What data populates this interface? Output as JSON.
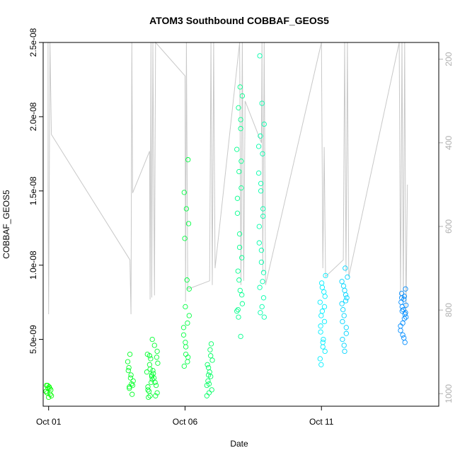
{
  "chart_data": {
    "type": "scatter",
    "title": "ATOM3 Southbound COBBAF_GEOS5",
    "xlabel": "Date",
    "ylabel": "COBBAF_GEOS5",
    "x_axis": {
      "unit": "day of Oct (2016)",
      "range": [
        0.8,
        15.3
      ],
      "ticks": [
        {
          "value": 1,
          "label": "Oct 01"
        },
        {
          "value": 6,
          "label": "Oct 06"
        },
        {
          "value": 11,
          "label": "Oct 11"
        }
      ]
    },
    "y_axis": {
      "range": [
        5e-10,
        2.5e-08
      ],
      "ticks": [
        {
          "value": 5e-09,
          "label": "5.0e-09"
        },
        {
          "value": 1e-08,
          "label": "1.0e-08"
        },
        {
          "value": 1.5e-08,
          "label": "1.5e-08"
        },
        {
          "value": 2e-08,
          "label": "2.0e-08"
        },
        {
          "value": 2.5e-08,
          "label": "2.5e-08"
        }
      ]
    },
    "y2_axis": {
      "color": "#b0b0b0",
      "reversed": true,
      "range": [
        1030,
        160
      ],
      "ticks": [
        {
          "value": 200,
          "label": "200"
        },
        {
          "value": 400,
          "label": "400"
        },
        {
          "value": 600,
          "label": "600"
        },
        {
          "value": 800,
          "label": "800"
        },
        {
          "value": 1000,
          "label": "1000"
        }
      ]
    },
    "grid": false,
    "legend": "none",
    "point_color_scale": [
      "#00ff00",
      "#00ff80",
      "#00ffff",
      "#0080ff"
    ],
    "series": [
      {
        "kind": "points",
        "clusters": [
          {
            "x": 1.0,
            "values": [
              1.5e-09,
              1.7e-09,
              1.9e-09,
              1.2e-09,
              1.8e-09,
              1.4e-09,
              1.6e-09,
              1.1e-09,
              1.9e-09,
              1.3e-09,
              1.7e-09,
              1.5e-09
            ]
          },
          {
            "x": 4.0,
            "values": [
              1.8e-09,
              2.2e-09,
              2.6e-09,
              3.1e-09,
              1.9e-09,
              2.4e-09,
              2.9e-09,
              1.3e-09,
              4e-09,
              3.5e-09,
              2e-09,
              1.7e-09
            ]
          },
          {
            "x": 4.7,
            "values": [
              1.2e-09,
              1.8e-09,
              2.5e-09,
              3.3e-09,
              4e-09,
              2.1e-09,
              1.5e-09,
              2.8e-09,
              3.7e-09,
              1.1e-09,
              2.3e-09,
              3e-09,
              1.6e-09,
              2.6e-09,
              3.9e-09
            ]
          },
          {
            "x": 4.9,
            "values": [
              1.4e-09,
              2.1e-09,
              2.9e-09,
              3.8e-09,
              4.6e-09,
              5e-09,
              1.9e-09,
              2.4e-09,
              3.4e-09,
              1.2e-09,
              2.7e-09,
              4.2e-09
            ]
          },
          {
            "x": 6.05,
            "values": [
              3.2e-09,
              3.8e-09,
              4.5e-09,
              5.3e-09,
              6.1e-09,
              7.2e-09,
              8.4e-09,
              9e-09,
              1.18e-08,
              1.28e-08,
              1.38e-08,
              1.49e-08,
              1.71e-08,
              4e-09,
              5.8e-09,
              3.5e-09,
              4.8e-09,
              6.6e-09
            ]
          },
          {
            "x": 6.9,
            "values": [
              1.4e-09,
              1.9e-09,
              2.5e-09,
              3.1e-09,
              3.6e-09,
              4.3e-09,
              2.2e-09,
              1.6e-09,
              2.8e-09,
              3.3e-09,
              4.7e-09,
              2e-09,
              1.2e-09,
              3.9e-09,
              2.6e-09
            ]
          },
          {
            "x": 8.0,
            "values": [
              5.2e-09,
              6.5e-09,
              7.4e-09,
              8.3e-09,
              9.6e-09,
              1.05e-08,
              1.21e-08,
              1.35e-08,
              1.52e-08,
              1.63e-08,
              1.78e-08,
              1.92e-08,
              2.06e-08,
              2.14e-08,
              2.2e-08,
              7e-09,
              8e-09,
              1.12e-08,
              1.45e-08,
              1.7e-08,
              9e-09,
              6.9e-09,
              1.98e-08
            ]
          },
          {
            "x": 8.8,
            "values": [
              6.5e-09,
              7.2e-09,
              8.5e-09,
              9.5e-09,
              1.1e-08,
              1.26e-08,
              1.38e-08,
              1.5e-08,
              1.62e-08,
              1.75e-08,
              1.87e-08,
              1.95e-08,
              2.09e-08,
              2.41e-08,
              7.8e-09,
              1.02e-08,
              1.15e-08,
              1.33e-08,
              1.55e-08,
              1.8e-08,
              8.9e-09,
              6.8e-09
            ]
          },
          {
            "x": 11.05,
            "values": [
              3.3e-09,
              4.2e-09,
              4.8e-09,
              5.5e-09,
              6.2e-09,
              6.9e-09,
              7.5e-09,
              8.2e-09,
              8.8e-09,
              9.3e-09,
              5e-09,
              6.6e-09,
              7.9e-09,
              4.5e-09,
              5.9e-09,
              7.2e-09,
              8.5e-09,
              3.7e-09
            ]
          },
          {
            "x": 11.85,
            "values": [
              4.2e-09,
              5e-09,
              5.8e-09,
              6.6e-09,
              7.4e-09,
              8e-09,
              8.6e-09,
              9.2e-09,
              9.8e-09,
              7e-09,
              7.8e-09,
              8.3e-09,
              6.2e-09,
              5.4e-09,
              4.6e-09,
              8.9e-09,
              7.6e-09
            ]
          },
          {
            "x": 14.0,
            "values": [
              4.8e-09,
              5.3e-09,
              5.9e-09,
              6.4e-09,
              6.9e-09,
              7.3e-09,
              7.7e-09,
              8.1e-09,
              8.4e-09,
              7e-09,
              7.5e-09,
              6.7e-09,
              6.1e-09,
              5.6e-09,
              7.9e-09,
              7.2e-09,
              6.5e-09,
              5.1e-09,
              7.8e-09,
              6.8e-09
            ]
          }
        ]
      },
      {
        "kind": "line",
        "axis": "y2",
        "color": "#c8c8c8",
        "points": [
          [
            0.98,
            160
          ],
          [
            0.98,
            500
          ],
          [
            1.0,
            810
          ],
          [
            1.05,
            160
          ],
          [
            1.1,
            380
          ],
          [
            3.98,
            680
          ],
          [
            4.02,
            810
          ],
          [
            4.05,
            160
          ],
          [
            4.08,
            520
          ],
          [
            4.7,
            420
          ],
          [
            4.72,
            775
          ],
          [
            4.75,
            160
          ],
          [
            4.78,
            770
          ],
          [
            4.82,
            160
          ],
          [
            4.88,
            765
          ],
          [
            4.92,
            160
          ],
          [
            6.0,
            240
          ],
          [
            6.02,
            780
          ],
          [
            6.05,
            160
          ],
          [
            6.1,
            750
          ],
          [
            6.9,
            730
          ],
          [
            6.95,
            160
          ],
          [
            7.0,
            740
          ],
          [
            7.05,
            160
          ],
          [
            7.1,
            700
          ],
          [
            8.0,
            160
          ],
          [
            8.05,
            740
          ],
          [
            8.1,
            160
          ],
          [
            8.15,
            730
          ],
          [
            8.2,
            300
          ],
          [
            8.8,
            400
          ],
          [
            8.82,
            160
          ],
          [
            8.85,
            710
          ],
          [
            8.9,
            160
          ],
          [
            8.95,
            740
          ],
          [
            11.0,
            160
          ],
          [
            11.05,
            700
          ],
          [
            11.1,
            410
          ],
          [
            11.15,
            720
          ],
          [
            11.8,
            680
          ],
          [
            11.85,
            160
          ],
          [
            11.9,
            710
          ],
          [
            11.95,
            160
          ],
          [
            12.0,
            720
          ],
          [
            13.85,
            160
          ],
          [
            13.9,
            770
          ],
          [
            13.95,
            160
          ],
          [
            14.0,
            780
          ],
          [
            14.05,
            160
          ],
          [
            14.1,
            810
          ],
          [
            14.15,
            500
          ]
        ]
      }
    ]
  }
}
